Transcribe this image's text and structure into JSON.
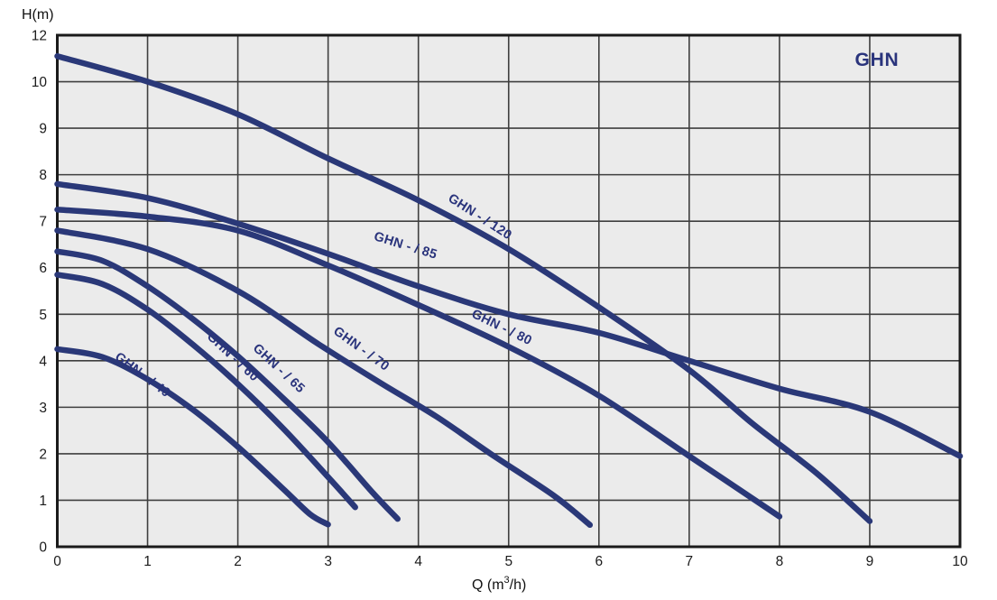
{
  "title": "GHN",
  "axes": {
    "y_title": "H(m)",
    "x_title_pre": "Q (m",
    "x_title_sup": "3",
    "x_title_post": "/h)"
  },
  "style": {
    "curve_color": "#2a3878",
    "label_color": "#2a347c",
    "title_color": "#2a347c",
    "plot_bg": "#ebebeb",
    "grid_color": "#3f3f3f",
    "border_color": "#1a1a1a",
    "tick_color": "#1b1b1b"
  },
  "chart_data": {
    "type": "line",
    "title": "GHN",
    "xlabel": "Q (m³/h)",
    "ylabel": "H(m)",
    "xlim": [
      0,
      10
    ],
    "ylim": [
      0,
      12
    ],
    "grid": true,
    "legend_position": "labels-on-curves",
    "y_axis_note": "Top interval 10–12 is compressed into a single grid step; '11' is not labelled.",
    "x_ticks": [
      "0",
      "1",
      "2",
      "3",
      "4",
      "5",
      "6",
      "7",
      "8",
      "9",
      "10"
    ],
    "y_ticks": [
      {
        "label": "12",
        "u": 11
      },
      {
        "label": "10",
        "u": 10
      },
      {
        "label": "9",
        "u": 9
      },
      {
        "label": "8",
        "u": 8
      },
      {
        "label": "7",
        "u": 7
      },
      {
        "label": "6",
        "u": 6
      },
      {
        "label": "5",
        "u": 5
      },
      {
        "label": "4",
        "u": 4
      },
      {
        "label": "3",
        "u": 3
      },
      {
        "label": "2",
        "u": 2
      },
      {
        "label": "1",
        "u": 1
      },
      {
        "label": "0",
        "u": 0
      }
    ],
    "series": [
      {
        "name": "GHN - / 120",
        "points": [
          [
            0,
            11.1
          ],
          [
            1,
            10.0
          ],
          [
            2,
            9.3
          ],
          [
            3,
            8.35
          ],
          [
            4,
            7.45
          ],
          [
            5,
            6.4
          ],
          [
            6,
            5.15
          ],
          [
            7,
            3.8
          ],
          [
            7.7,
            2.65
          ],
          [
            8.4,
            1.6
          ],
          [
            9,
            0.55
          ]
        ]
      },
      {
        "name": "GHN - / 85",
        "points": [
          [
            0,
            7.8
          ],
          [
            1,
            7.5
          ],
          [
            2,
            6.95
          ],
          [
            3,
            6.3
          ],
          [
            4,
            5.6
          ],
          [
            5,
            5.0
          ],
          [
            6,
            4.6
          ],
          [
            7,
            4.0
          ],
          [
            8,
            3.4
          ],
          [
            9,
            2.9
          ],
          [
            10,
            1.95
          ]
        ]
      },
      {
        "name": "GHN - / 80",
        "points": [
          [
            0,
            7.25
          ],
          [
            1,
            7.1
          ],
          [
            2,
            6.8
          ],
          [
            3,
            6.05
          ],
          [
            4,
            5.2
          ],
          [
            5,
            4.3
          ],
          [
            6,
            3.25
          ],
          [
            7,
            1.95
          ],
          [
            8,
            0.65
          ]
        ]
      },
      {
        "name": "GHN - / 70",
        "points": [
          [
            0,
            6.8
          ],
          [
            1,
            6.4
          ],
          [
            2,
            5.5
          ],
          [
            2.9,
            4.35
          ],
          [
            3.6,
            3.5
          ],
          [
            4.2,
            2.8
          ],
          [
            4.8,
            2.0
          ],
          [
            5.5,
            1.1
          ],
          [
            5.9,
            0.47
          ]
        ]
      },
      {
        "name": "GHN - / 65",
        "points": [
          [
            0,
            6.35
          ],
          [
            0.5,
            6.15
          ],
          [
            1,
            5.6
          ],
          [
            1.5,
            4.9
          ],
          [
            2,
            4.1
          ],
          [
            2.5,
            3.2
          ],
          [
            3,
            2.25
          ],
          [
            3.5,
            1.15
          ],
          [
            3.77,
            0.6
          ]
        ]
      },
      {
        "name": "GHN - / 60",
        "points": [
          [
            0,
            5.85
          ],
          [
            0.5,
            5.65
          ],
          [
            1,
            5.1
          ],
          [
            1.5,
            4.35
          ],
          [
            2,
            3.5
          ],
          [
            2.5,
            2.55
          ],
          [
            3,
            1.5
          ],
          [
            3.3,
            0.85
          ]
        ]
      },
      {
        "name": "GHN - / 40",
        "points": [
          [
            0,
            4.25
          ],
          [
            0.5,
            4.08
          ],
          [
            1,
            3.6
          ],
          [
            1.5,
            2.95
          ],
          [
            2,
            2.15
          ],
          [
            2.5,
            1.25
          ],
          [
            2.8,
            0.7
          ],
          [
            3.0,
            0.48
          ]
        ]
      }
    ]
  },
  "curve_labels": [
    {
      "text": "GHN - / 120",
      "q": 4.32,
      "h": 7.45,
      "rot": 33
    },
    {
      "text": "GHN - / 85",
      "q": 3.5,
      "h": 6.6,
      "rot": 17
    },
    {
      "text": "GHN - / 80",
      "q": 4.58,
      "h": 4.95,
      "rot": 26
    },
    {
      "text": "GHN - / 70",
      "q": 3.05,
      "h": 4.6,
      "rot": 36
    },
    {
      "text": "GHN - / 65",
      "q": 2.16,
      "h": 4.25,
      "rot": 43
    },
    {
      "text": "GHN - / 60",
      "q": 1.65,
      "h": 4.5,
      "rot": 43
    },
    {
      "text": "GHN - / 40",
      "q": 0.63,
      "h": 4.05,
      "rot": 37
    }
  ]
}
